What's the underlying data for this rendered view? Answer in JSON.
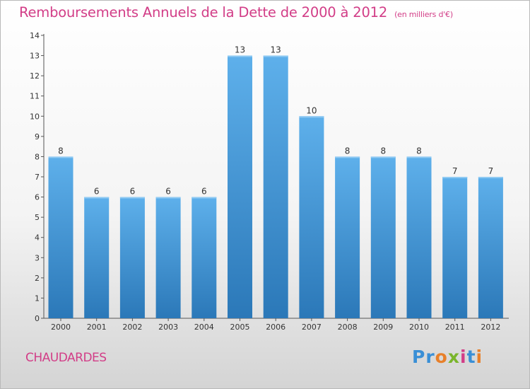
{
  "header": {
    "title": "Remboursements Annuels de la Dette de 2000 à 2012",
    "unit": "(en milliers d'€)"
  },
  "footer": {
    "commune": "CHAUDARDES",
    "logo_text": "Proxiti"
  },
  "colors": {
    "title": "#d23d87",
    "bar_top": "#5eb0eb",
    "bar_bottom": "#2b78b8",
    "logo": [
      "#3a8fd6",
      "#3a8fd6",
      "#e8802a",
      "#7ab52b",
      "#d23d87",
      "#3a8fd6",
      "#e8802a"
    ]
  },
  "chart_data": {
    "type": "bar",
    "title": "Remboursements Annuels de la Dette de 2000 à 2012",
    "xlabel": "",
    "ylabel": "",
    "categories": [
      "2000",
      "2001",
      "2002",
      "2003",
      "2004",
      "2005",
      "2006",
      "2007",
      "2008",
      "2009",
      "2010",
      "2011",
      "2012"
    ],
    "values": [
      8,
      6,
      6,
      6,
      6,
      13,
      13,
      10,
      8,
      8,
      8,
      7,
      7
    ],
    "ylim": [
      0,
      14
    ],
    "yticks": [
      0,
      1,
      2,
      3,
      4,
      5,
      6,
      7,
      8,
      9,
      10,
      11,
      12,
      13,
      14
    ],
    "grid": false,
    "legend": "none"
  }
}
